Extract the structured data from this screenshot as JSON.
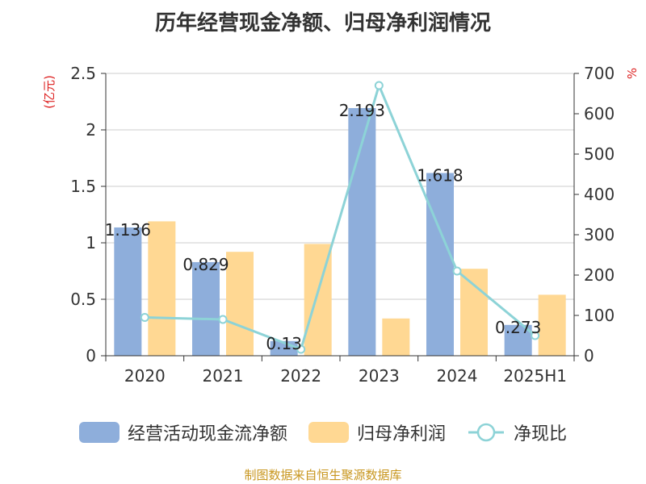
{
  "chart_data": {
    "type": "bar",
    "title": "历年经营现金净额、归母净利润情况",
    "categories": [
      "2020",
      "2021",
      "2022",
      "2023",
      "2024",
      "2025H1"
    ],
    "y_left": {
      "unit_label": "(亿元)",
      "ylim": [
        0,
        2.5
      ],
      "ticks": [
        "0",
        "0.5",
        "1",
        "1.5",
        "2",
        "2.5"
      ]
    },
    "y_right": {
      "unit_label": "%",
      "ylim": [
        0,
        700
      ],
      "ticks": [
        "0",
        "100",
        "200",
        "300",
        "400",
        "500",
        "600",
        "700"
      ]
    },
    "grid": true,
    "legend_position": "bottom",
    "series": [
      {
        "name": "经营活动现金流净额",
        "kind": "bar",
        "axis": "left",
        "color": "#8eaedb",
        "values": [
          1.136,
          0.829,
          0.13,
          2.193,
          1.618,
          0.273
        ],
        "labels": [
          "1.136",
          "0.829",
          "0.13",
          "2.193",
          "1.618",
          "0.273"
        ]
      },
      {
        "name": "归母净利润",
        "kind": "bar",
        "axis": "left",
        "color": "#ffd893",
        "values": [
          1.19,
          0.92,
          0.99,
          0.33,
          0.77,
          0.54
        ]
      },
      {
        "name": "净现比",
        "kind": "line",
        "axis": "right",
        "color": "#8dd3d7",
        "values": [
          95,
          90,
          16,
          670,
          210,
          50
        ]
      }
    ]
  },
  "source": "制图数据来自恒生聚源数据库"
}
